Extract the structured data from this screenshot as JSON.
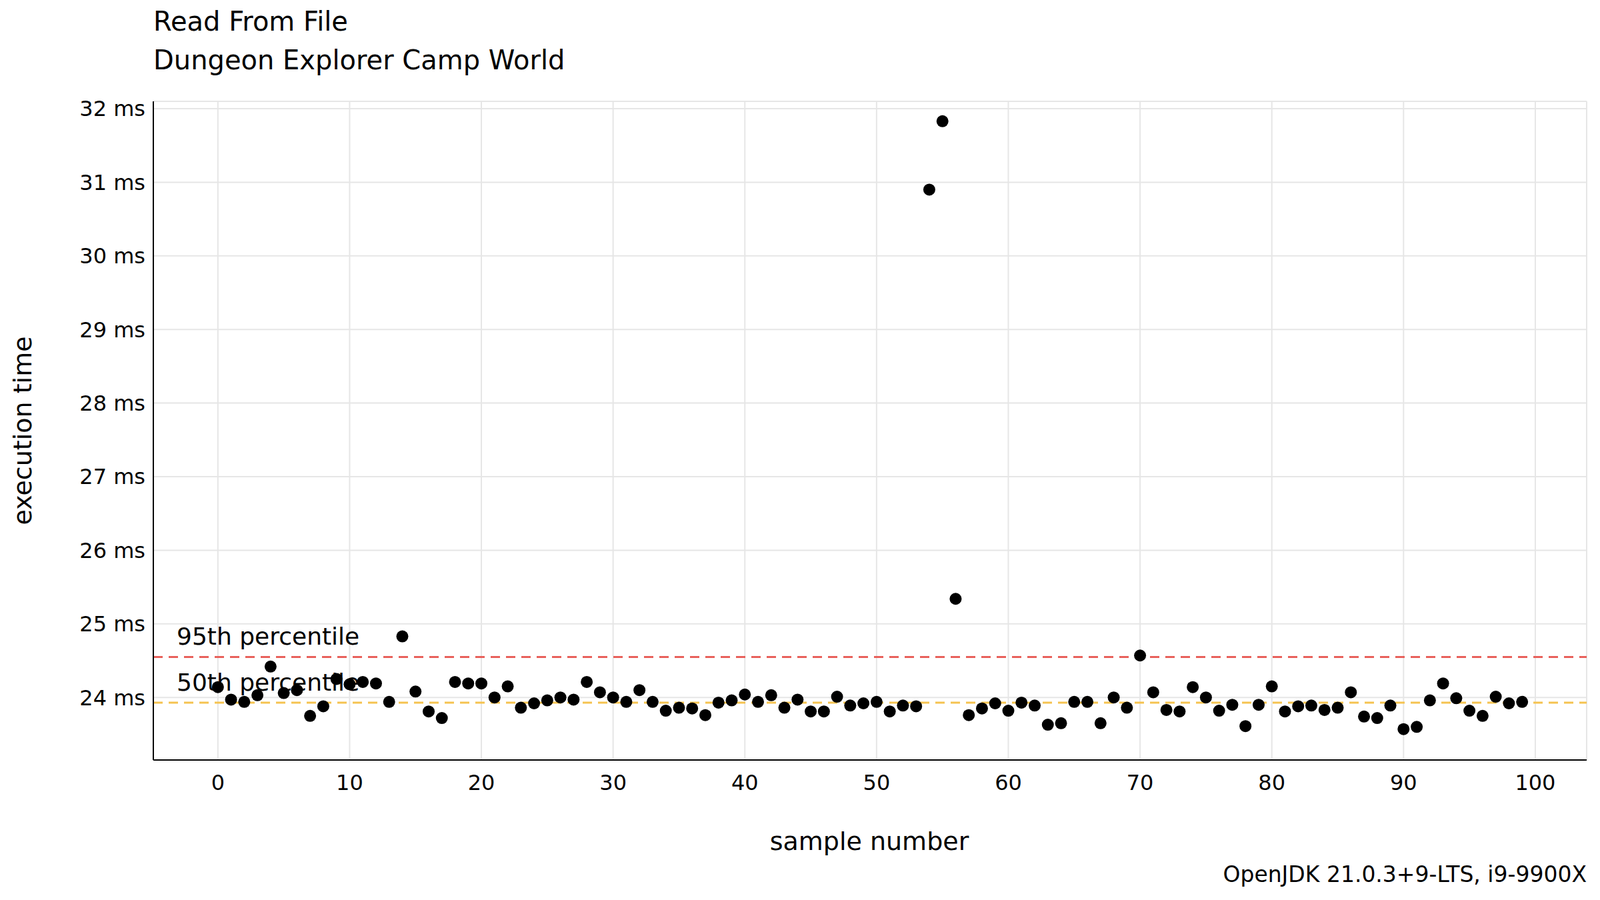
{
  "chart_data": {
    "type": "scatter",
    "title": "Read From File",
    "subtitle": "Dungeon Explorer Camp World",
    "x_label": "sample number",
    "y_label": "execution time",
    "caption": "OpenJDK 21.0.3+9-LTS, i9-9900X",
    "x": [
      0,
      1,
      2,
      3,
      4,
      5,
      6,
      7,
      8,
      9,
      10,
      11,
      12,
      13,
      14,
      15,
      16,
      17,
      18,
      19,
      20,
      21,
      22,
      23,
      24,
      25,
      26,
      27,
      28,
      29,
      30,
      31,
      32,
      33,
      34,
      35,
      36,
      37,
      38,
      39,
      40,
      41,
      42,
      43,
      44,
      45,
      46,
      47,
      48,
      49,
      50,
      51,
      52,
      53,
      54,
      55,
      56,
      57,
      58,
      59,
      60,
      61,
      62,
      63,
      64,
      65,
      66,
      67,
      68,
      69,
      70,
      71,
      72,
      73,
      74,
      75,
      76,
      77,
      78,
      79,
      80,
      81,
      82,
      83,
      84,
      85,
      86,
      87,
      88,
      89,
      90,
      91,
      92,
      93,
      94,
      95,
      96,
      97,
      98,
      99
    ],
    "values": [
      24.14,
      23.97,
      23.94,
      24.03,
      24.42,
      24.06,
      24.1,
      23.75,
      23.88,
      24.25,
      24.18,
      24.21,
      24.19,
      23.94,
      24.83,
      24.08,
      23.81,
      23.72,
      24.21,
      24.19,
      24.19,
      24.0,
      24.15,
      23.86,
      23.92,
      23.96,
      24.0,
      23.97,
      24.21,
      24.07,
      24.0,
      23.94,
      24.1,
      23.94,
      23.82,
      23.86,
      23.85,
      23.76,
      23.93,
      23.96,
      24.04,
      23.94,
      24.03,
      23.86,
      23.97,
      23.81,
      23.81,
      24.01,
      23.89,
      23.92,
      23.94,
      23.81,
      23.89,
      23.88,
      30.9,
      31.83,
      25.34,
      23.76,
      23.85,
      23.92,
      23.82,
      23.93,
      23.89,
      23.63,
      23.65,
      23.94,
      23.94,
      23.65,
      24.0,
      23.86,
      24.57,
      24.07,
      23.83,
      23.81,
      24.14,
      24.0,
      23.82,
      23.9,
      23.61,
      23.9,
      24.15,
      23.81,
      23.88,
      23.89,
      23.83,
      23.86,
      24.07,
      23.74,
      23.72,
      23.89,
      23.57,
      23.6,
      23.96,
      24.19,
      23.99,
      23.82,
      23.75,
      24.01,
      23.92,
      23.94
    ],
    "color": "#000000",
    "marker": "circle",
    "xlim": [
      -4.9,
      103.9
    ],
    "xticks": [
      0,
      10,
      20,
      30,
      40,
      50,
      60,
      70,
      80,
      90,
      100
    ],
    "ylim": [
      23.15,
      32.1
    ],
    "yticks": [
      {
        "value": 24,
        "label": "24 ms"
      },
      {
        "value": 25,
        "label": "25 ms"
      },
      {
        "value": 26,
        "label": "26 ms"
      },
      {
        "value": 27,
        "label": "27 ms"
      },
      {
        "value": 28,
        "label": "28 ms"
      },
      {
        "value": 29,
        "label": "29 ms"
      },
      {
        "value": 30,
        "label": "30 ms"
      },
      {
        "value": 31,
        "label": "31 ms"
      },
      {
        "value": 32,
        "label": "32 ms"
      }
    ],
    "grid": true,
    "reference_lines": [
      {
        "label": "95th percentile",
        "value": 24.55,
        "color": "#e8615b",
        "line_style": "dashed"
      },
      {
        "label": "50th percentile",
        "value": 23.93,
        "color": "#f5c350",
        "line_style": "dashed"
      }
    ]
  }
}
